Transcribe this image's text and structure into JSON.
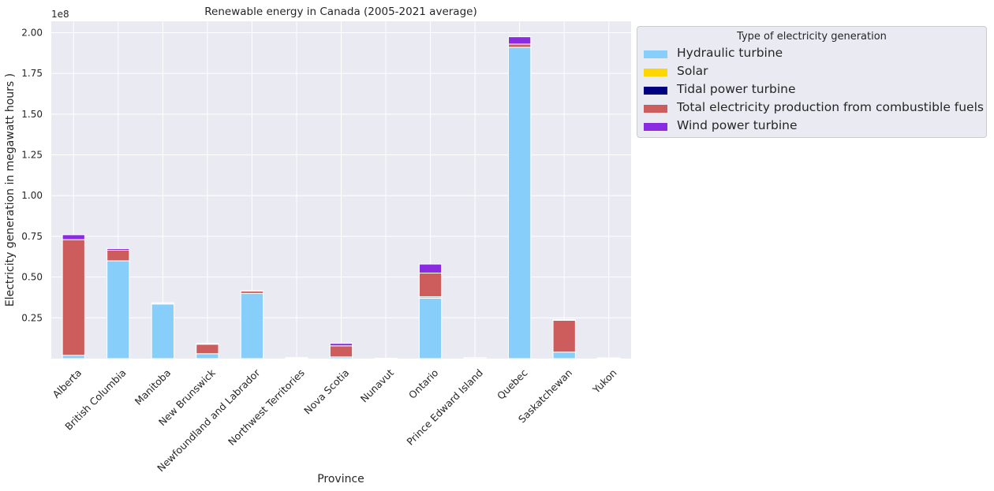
{
  "chart_data": {
    "type": "bar",
    "stacked": true,
    "title": "Renewable energy in Canada (2005-2021 average)",
    "xlabel": "Province",
    "ylabel": "Electricity generation in megawatt hours )",
    "y_offset_label": "1e8",
    "ylim": [
      0,
      207000000
    ],
    "yticks": [
      25000000,
      50000000,
      75000000,
      100000000,
      125000000,
      150000000,
      175000000,
      200000000
    ],
    "ytick_labels": [
      "0.25",
      "0.50",
      "0.75",
      "1.00",
      "1.25",
      "1.50",
      "1.75",
      "2.00"
    ],
    "grid": true,
    "legend_position": "outside-right",
    "legend_title": "Type of electricity generation",
    "categories": [
      "Alberta",
      "British Columbia",
      "Manitoba",
      "New Brunswick",
      "Newfoundland and Labrador",
      "Northwest Territories",
      "Nova Scotia",
      "Nunavut",
      "Ontario",
      "Prince Edward Island",
      "Quebec",
      "Saskatchewan",
      "Yukon"
    ],
    "series": [
      {
        "name": "Hydraulic turbine",
        "color": "#87cefa",
        "values": [
          2000000,
          60000000,
          33500000,
          3000000,
          40000000,
          300000,
          1000000,
          0,
          37000000,
          0,
          191000000,
          4000000,
          400000
        ]
      },
      {
        "name": "Solar",
        "color": "#ffd700",
        "values": [
          0,
          0,
          0,
          0,
          0,
          0,
          0,
          0,
          1000000,
          0,
          0,
          0,
          0
        ]
      },
      {
        "name": "Tidal power turbine",
        "color": "#000080",
        "values": [
          0,
          0,
          0,
          0,
          0,
          0,
          30000,
          0,
          0,
          0,
          0,
          0,
          0
        ]
      },
      {
        "name": "Total electricity production from combustible fuels",
        "color": "#cd5c5c",
        "values": [
          71000000,
          6500000,
          300000,
          5800000,
          1500000,
          300000,
          6800000,
          200000,
          14500000,
          100000,
          2000000,
          19500000,
          100000
        ]
      },
      {
        "name": "Wind power turbine",
        "color": "#8a2be2",
        "values": [
          3000000,
          1000000,
          500000,
          500000,
          200000,
          0,
          1500000,
          0,
          5500000,
          500000,
          4500000,
          500000,
          0
        ]
      }
    ]
  }
}
